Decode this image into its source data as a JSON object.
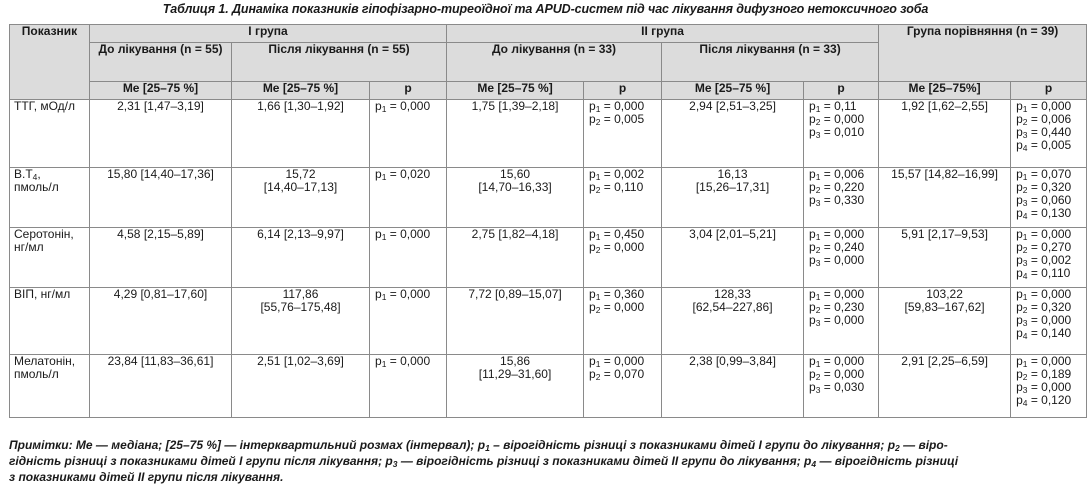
{
  "caption": "Таблиця 1. Динаміка показників гіпофізарно-тиреоїдної та APUD-систем під час лікування дифузного нетоксичного зоба",
  "header": {
    "indicator": "Показник",
    "group1": "I група",
    "group2": "II група",
    "comparison": "Група порівняння (n = 39)",
    "g1_before": "До лікування (n = 55)",
    "g1_after": "Після лікування (n = 55)",
    "g2_before": "До лікування (n = 33)",
    "g2_after": "Після лікування (n = 33)",
    "me": "Me [25–75 %]",
    "me_comp": "Me [25–75%]",
    "p": "p"
  },
  "rows": [
    {
      "label_lines": [
        "ТТГ, мОд/л"
      ],
      "g1_before": [
        "2,31 [1,47–3,19]"
      ],
      "g1_after": [
        "1,66 [1,30–1,92]"
      ],
      "g1_p": [
        [
          "1",
          " = 0,000"
        ]
      ],
      "g2_before": [
        "1,75 [1,39–2,18]"
      ],
      "g2_before_p": [
        [
          "1",
          " = 0,000"
        ],
        [
          "2",
          " = 0,005"
        ]
      ],
      "g2_after": [
        "2,94 [2,51–3,25]"
      ],
      "g2_after_p": [
        [
          "1",
          " = 0,11"
        ],
        [
          "2",
          " = 0,000"
        ],
        [
          "3",
          " = 0,010"
        ]
      ],
      "comp": [
        "1,92 [1,62–2,55]"
      ],
      "comp_p": [
        [
          "1",
          " = 0,000"
        ],
        [
          "2",
          " = 0,006"
        ],
        [
          "3",
          " = 0,440"
        ],
        [
          "4",
          " = 0,005"
        ]
      ]
    },
    {
      "label_lines": [
        "В.Т4,",
        "пмоль/л"
      ],
      "g1_before": [
        "15,80 [14,40–17,36]"
      ],
      "g1_after": [
        "15,72",
        "[14,40–17,13]"
      ],
      "g1_p": [
        [
          "1",
          " = 0,020"
        ]
      ],
      "g2_before": [
        "15,60",
        "[14,70–16,33]"
      ],
      "g2_before_p": [
        [
          "1",
          " = 0,002"
        ],
        [
          "2",
          " = 0,110"
        ]
      ],
      "g2_after": [
        "16,13",
        "[15,26–17,31]"
      ],
      "g2_after_p": [
        [
          "1",
          " = 0,006"
        ],
        [
          "2",
          " = 0,220"
        ],
        [
          "3",
          " = 0,330"
        ]
      ],
      "comp": [
        "15,57 [14,82–16,99]"
      ],
      "comp_p": [
        [
          "1",
          " = 0,070"
        ],
        [
          "2",
          " = 0,320"
        ],
        [
          "3",
          " = 0,060"
        ],
        [
          "4",
          " = 0,130"
        ]
      ]
    },
    {
      "label_lines": [
        "Серотонін,",
        "нг/мл"
      ],
      "g1_before": [
        "4,58 [2,15–5,89]"
      ],
      "g1_after": [
        "6,14 [2,13–9,97]"
      ],
      "g1_p": [
        [
          "1",
          " = 0,000"
        ]
      ],
      "g2_before": [
        "2,75 [1,82–4,18]"
      ],
      "g2_before_p": [
        [
          "1",
          " = 0,450"
        ],
        [
          "2",
          " = 0,000"
        ]
      ],
      "g2_after": [
        "3,04 [2,01–5,21]"
      ],
      "g2_after_p": [
        [
          "1",
          " = 0,000"
        ],
        [
          "2",
          " = 0,240"
        ],
        [
          "3",
          " = 0,000"
        ]
      ],
      "comp": [
        "5,91 [2,17–9,53]"
      ],
      "comp_p": [
        [
          "1",
          " = 0,000"
        ],
        [
          "2",
          " = 0,270"
        ],
        [
          "3",
          " = 0,002"
        ],
        [
          "4",
          " = 0,110"
        ]
      ]
    },
    {
      "label_lines": [
        "ВІП, нг/мл"
      ],
      "g1_before": [
        "4,29 [0,81–17,60]"
      ],
      "g1_after": [
        "117,86",
        "[55,76–175,48]"
      ],
      "g1_p": [
        [
          "1",
          " = 0,000"
        ]
      ],
      "g2_before": [
        "7,72 [0,89–15,07]"
      ],
      "g2_before_p": [
        [
          "1",
          " = 0,360"
        ],
        [
          "2",
          " = 0,000"
        ]
      ],
      "g2_after": [
        "128,33",
        "[62,54–227,86]"
      ],
      "g2_after_p": [
        [
          "1",
          " = 0,000"
        ],
        [
          "2",
          " = 0,230"
        ],
        [
          "3",
          " = 0,000"
        ]
      ],
      "comp": [
        "103,22",
        "[59,83–167,62]"
      ],
      "comp_p": [
        [
          "1",
          " = 0,000"
        ],
        [
          "2",
          " = 0,320"
        ],
        [
          "3",
          " = 0,000"
        ],
        [
          "4",
          " = 0,140"
        ]
      ]
    },
    {
      "label_lines": [
        "Мелатонін,",
        "пмоль/л"
      ],
      "g1_before": [
        "23,84 [11,83–36,61]"
      ],
      "g1_after": [
        "2,51 [1,02–3,69]"
      ],
      "g1_p": [
        [
          "1",
          " = 0,000"
        ]
      ],
      "g2_before": [
        "15,86",
        "[11,29–31,60]"
      ],
      "g2_before_p": [
        [
          "1",
          " = 0,000"
        ],
        [
          "2",
          " = 0,070"
        ]
      ],
      "g2_after": [
        "2,38 [0,99–3,84]"
      ],
      "g2_after_p": [
        [
          "1",
          " = 0,000"
        ],
        [
          "2",
          " = 0,000"
        ],
        [
          "3",
          " = 0,030"
        ]
      ],
      "comp": [
        "2,91 [2,25–6,59]"
      ],
      "comp_p": [
        [
          "1",
          " = 0,000"
        ],
        [
          "2",
          " = 0,189"
        ],
        [
          "3",
          " = 0,000"
        ],
        [
          "4",
          " = 0,120"
        ]
      ]
    }
  ],
  "notes_lines": [
    "Примітки: Ме — медіана; [25–75 %] — інтерквартильний розмах (інтервал); p1 – вірогідність різниці з показниками дітей І групи до лікування; p2 — віро-",
    "гідність різниці з показниками дітей І групи після лікування; p3 — вірогідність різниці з показниками дітей II групи до лікування; p4 — вірогідність різниці",
    "з показниками дітей II групи після лікування."
  ]
}
